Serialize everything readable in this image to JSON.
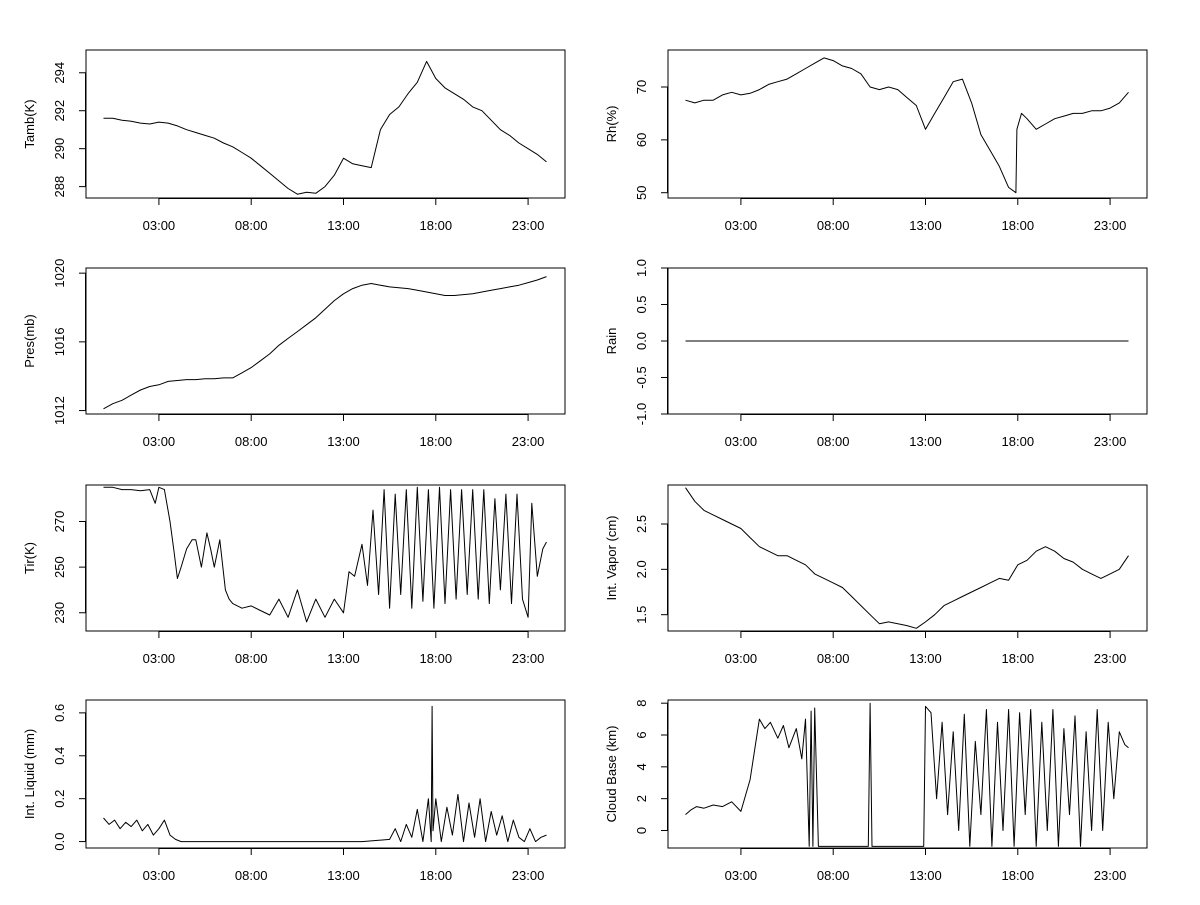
{
  "chart_data": [
    {
      "id": "tamb",
      "type": "line",
      "ylabel": "Tamb(K)",
      "x_tick_labels": [
        "03:00",
        "08:00",
        "13:00",
        "18:00",
        "23:00"
      ],
      "x_tick_hours": [
        3,
        8,
        13,
        18,
        23
      ],
      "xlim": [
        -0.95,
        25.0
      ],
      "ylim": [
        287.4,
        295.2
      ],
      "y_ticks": [
        288,
        290,
        292,
        294
      ],
      "y_tick_labels": [
        "288",
        "290",
        "292",
        "294"
      ],
      "series": [
        {
          "name": "Tamb(K)",
          "x": [
            0.0,
            0.5,
            1.0,
            1.5,
            2.0,
            2.5,
            3.0,
            3.5,
            4.0,
            4.5,
            5.0,
            5.5,
            6.0,
            6.5,
            7.0,
            7.5,
            8.0,
            8.5,
            9.0,
            9.5,
            10.0,
            10.5,
            11.0,
            11.5,
            12.0,
            12.5,
            13.0,
            13.5,
            14.0,
            14.5,
            15.0,
            15.5,
            16.0,
            16.5,
            17.0,
            17.5,
            18.0,
            18.5,
            19.0,
            19.5,
            20.0,
            20.5,
            21.0,
            21.5,
            22.0,
            22.5,
            23.0,
            23.5,
            24.0
          ],
          "values": [
            291.6,
            291.6,
            291.5,
            291.45,
            291.35,
            291.3,
            291.4,
            291.35,
            291.2,
            291.0,
            290.85,
            290.7,
            290.55,
            290.3,
            290.1,
            289.8,
            289.5,
            289.1,
            288.7,
            288.3,
            287.9,
            287.6,
            287.7,
            287.65,
            288.0,
            288.6,
            289.5,
            289.2,
            289.1,
            289.0,
            291.0,
            291.8,
            292.2,
            292.9,
            293.5,
            294.6,
            293.7,
            293.2,
            292.9,
            292.6,
            292.2,
            292.0,
            291.5,
            291.0,
            290.7,
            290.3,
            290.0,
            289.7,
            289.3
          ]
        }
      ]
    },
    {
      "id": "rh",
      "type": "line",
      "ylabel": "Rh(%)",
      "x_tick_labels": [
        "03:00",
        "08:00",
        "13:00",
        "18:00",
        "23:00"
      ],
      "x_tick_hours": [
        3,
        8,
        13,
        18,
        23
      ],
      "xlim": [
        -0.95,
        25.0
      ],
      "ylim": [
        49,
        77
      ],
      "y_ticks": [
        50,
        60,
        70
      ],
      "y_tick_labels": [
        "50",
        "60",
        "70"
      ],
      "series": [
        {
          "name": "Rh(%)",
          "x": [
            0.0,
            0.5,
            1.0,
            1.5,
            2.0,
            2.5,
            3.0,
            3.5,
            4.0,
            4.5,
            5.0,
            5.5,
            6.0,
            6.5,
            7.0,
            7.5,
            8.0,
            8.5,
            9.0,
            9.5,
            10.0,
            10.5,
            11.0,
            11.5,
            12.0,
            12.5,
            13.0,
            13.5,
            14.0,
            14.5,
            15.0,
            15.5,
            16.0,
            16.5,
            17.0,
            17.5,
            17.9,
            17.95,
            18.2,
            18.5,
            19.0,
            19.5,
            20.0,
            20.5,
            21.0,
            21.5,
            22.0,
            22.5,
            23.0,
            23.5,
            24.0
          ],
          "values": [
            67.5,
            67,
            67.5,
            67.5,
            68.5,
            69,
            68.5,
            68.8,
            69.5,
            70.5,
            71,
            71.5,
            72.5,
            73.5,
            74.5,
            75.5,
            75,
            74,
            73.5,
            72.5,
            70,
            69.5,
            70,
            69.5,
            68,
            66.5,
            62,
            65,
            68,
            71,
            71.5,
            67,
            61,
            58,
            55,
            51,
            50,
            62,
            65,
            64,
            62,
            63,
            64,
            64.5,
            65,
            65,
            65.5,
            65.5,
            66,
            67,
            69
          ]
        }
      ]
    },
    {
      "id": "pres",
      "type": "line",
      "ylabel": "Pres(mb)",
      "x_tick_labels": [
        "03:00",
        "08:00",
        "13:00",
        "18:00",
        "23:00"
      ],
      "x_tick_hours": [
        3,
        8,
        13,
        18,
        23
      ],
      "xlim": [
        -0.95,
        25.0
      ],
      "ylim": [
        1011.8,
        1020.3
      ],
      "y_ticks": [
        1012,
        1016,
        1020
      ],
      "y_tick_labels": [
        "1012",
        "1016",
        "1020"
      ],
      "series": [
        {
          "name": "Pres(mb)",
          "x": [
            0.0,
            0.5,
            1.0,
            1.5,
            2.0,
            2.5,
            3.0,
            3.5,
            4.0,
            4.5,
            5.0,
            5.5,
            6.0,
            6.5,
            7.0,
            7.5,
            8.0,
            8.5,
            9.0,
            9.5,
            10.0,
            10.5,
            11.0,
            11.5,
            12.0,
            12.5,
            13.0,
            13.5,
            14.0,
            14.5,
            15.0,
            15.5,
            16.0,
            16.5,
            17.0,
            17.5,
            18.0,
            18.5,
            19.0,
            19.5,
            20.0,
            20.5,
            21.0,
            21.5,
            22.0,
            22.5,
            23.0,
            23.5,
            24.0
          ],
          "values": [
            1012.1,
            1012.4,
            1012.6,
            1012.9,
            1013.2,
            1013.4,
            1013.5,
            1013.7,
            1013.75,
            1013.8,
            1013.8,
            1013.85,
            1013.85,
            1013.9,
            1013.9,
            1014.2,
            1014.5,
            1014.9,
            1015.3,
            1015.8,
            1016.2,
            1016.6,
            1017.0,
            1017.4,
            1017.9,
            1018.4,
            1018.8,
            1019.1,
            1019.3,
            1019.4,
            1019.3,
            1019.2,
            1019.15,
            1019.1,
            1019.0,
            1018.9,
            1018.8,
            1018.7,
            1018.7,
            1018.75,
            1018.8,
            1018.9,
            1019.0,
            1019.1,
            1019.2,
            1019.3,
            1019.45,
            1019.6,
            1019.8
          ]
        }
      ]
    },
    {
      "id": "rain",
      "type": "line",
      "ylabel": "Rain",
      "x_tick_labels": [
        "03:00",
        "08:00",
        "13:00",
        "18:00",
        "23:00"
      ],
      "x_tick_hours": [
        3,
        8,
        13,
        18,
        23
      ],
      "xlim": [
        -0.95,
        25.0
      ],
      "ylim": [
        -1.0,
        1.0
      ],
      "y_ticks": [
        -1.0,
        -0.5,
        0.0,
        0.5,
        1.0
      ],
      "y_tick_labels": [
        "-1.0",
        "-0.5",
        "0.0",
        "0.5",
        "1.0"
      ],
      "series": [
        {
          "name": "Rain",
          "x": [
            0.0,
            24.0
          ],
          "values": [
            0.0,
            0.0
          ]
        }
      ]
    },
    {
      "id": "tir",
      "type": "line",
      "ylabel": "Tir(K)",
      "x_tick_labels": [
        "03:00",
        "08:00",
        "13:00",
        "18:00",
        "23:00"
      ],
      "x_tick_hours": [
        3,
        8,
        13,
        18,
        23
      ],
      "xlim": [
        -0.95,
        25.0
      ],
      "ylim": [
        222,
        286
      ],
      "y_ticks": [
        230,
        250,
        270
      ],
      "y_tick_labels": [
        "230",
        "250",
        "270"
      ],
      "series": [
        {
          "name": "Tir(K)",
          "x": [
            0.0,
            0.5,
            1.0,
            1.5,
            2.0,
            2.5,
            2.8,
            3.0,
            3.3,
            3.6,
            3.8,
            4.0,
            4.2,
            4.5,
            4.8,
            5.0,
            5.3,
            5.6,
            5.8,
            6.0,
            6.3,
            6.6,
            6.8,
            7.0,
            7.5,
            8.0,
            8.5,
            9.0,
            9.5,
            10.0,
            10.5,
            11.0,
            11.5,
            12.0,
            12.5,
            13.0,
            13.3,
            13.6,
            14.0,
            14.3,
            14.6,
            14.9,
            15.2,
            15.5,
            15.8,
            16.1,
            16.4,
            16.7,
            17.0,
            17.3,
            17.6,
            17.9,
            18.2,
            18.5,
            18.8,
            19.1,
            19.4,
            19.7,
            20.0,
            20.3,
            20.6,
            20.9,
            21.2,
            21.5,
            21.8,
            22.1,
            22.4,
            22.7,
            23.0,
            23.2,
            23.5,
            23.8,
            24.0
          ],
          "values": [
            285,
            285,
            284,
            284,
            283.5,
            284,
            278,
            285,
            284,
            270,
            258,
            245,
            250,
            258,
            262,
            262,
            250,
            265,
            258,
            250,
            262,
            240,
            236,
            234,
            232,
            233,
            231,
            229,
            236,
            228,
            240,
            226,
            236,
            228,
            236,
            230,
            248,
            246,
            260,
            242,
            275,
            238,
            284,
            232,
            282,
            238,
            284,
            232,
            285,
            235,
            284,
            232,
            285,
            234,
            284,
            236,
            284,
            238,
            284,
            236,
            284,
            234,
            280,
            240,
            282,
            234,
            282,
            236,
            228,
            278,
            246,
            258,
            261
          ]
        }
      ]
    },
    {
      "id": "vapor",
      "type": "line",
      "ylabel": "Int. Vapor (cm)",
      "x_tick_labels": [
        "03:00",
        "08:00",
        "13:00",
        "18:00",
        "23:00"
      ],
      "x_tick_hours": [
        3,
        8,
        13,
        18,
        23
      ],
      "xlim": [
        -0.95,
        25.0
      ],
      "ylim": [
        1.32,
        2.93
      ],
      "y_ticks": [
        1.5,
        2.0,
        2.5
      ],
      "y_tick_labels": [
        "1.5",
        "2.0",
        "2.5"
      ],
      "series": [
        {
          "name": "Int. Vapor (cm)",
          "x": [
            0.0,
            0.5,
            1.0,
            1.5,
            2.0,
            2.5,
            3.0,
            3.5,
            4.0,
            4.5,
            5.0,
            5.5,
            6.0,
            6.5,
            7.0,
            7.5,
            8.0,
            8.5,
            9.0,
            9.5,
            10.0,
            10.5,
            11.0,
            11.5,
            12.0,
            12.5,
            13.0,
            13.5,
            14.0,
            14.5,
            15.0,
            15.5,
            16.0,
            16.5,
            17.0,
            17.5,
            18.0,
            18.5,
            19.0,
            19.5,
            20.0,
            20.5,
            21.0,
            21.5,
            22.0,
            22.5,
            23.0,
            23.5,
            24.0
          ],
          "values": [
            2.9,
            2.75,
            2.65,
            2.6,
            2.55,
            2.5,
            2.45,
            2.35,
            2.25,
            2.2,
            2.15,
            2.15,
            2.1,
            2.05,
            1.95,
            1.9,
            1.85,
            1.8,
            1.7,
            1.6,
            1.5,
            1.4,
            1.42,
            1.4,
            1.38,
            1.35,
            1.42,
            1.5,
            1.6,
            1.65,
            1.7,
            1.75,
            1.8,
            1.85,
            1.9,
            1.88,
            2.05,
            2.1,
            2.2,
            2.25,
            2.2,
            2.12,
            2.08,
            2.0,
            1.95,
            1.9,
            1.95,
            2.0,
            2.15
          ]
        }
      ]
    },
    {
      "id": "liquid",
      "type": "line",
      "ylabel": "Int. Liquid (mm)",
      "x_tick_labels": [
        "03:00",
        "08:00",
        "13:00",
        "18:00",
        "23:00"
      ],
      "x_tick_hours": [
        3,
        8,
        13,
        18,
        23
      ],
      "xlim": [
        -0.95,
        25.0
      ],
      "ylim": [
        -0.03,
        0.66
      ],
      "y_ticks": [
        0.0,
        0.2,
        0.4,
        0.6
      ],
      "y_tick_labels": [
        "0.0",
        "0.2",
        "0.4",
        "0.6"
      ],
      "series": [
        {
          "name": "Int. Liquid (mm)",
          "x": [
            0.0,
            0.3,
            0.6,
            0.9,
            1.2,
            1.5,
            1.8,
            2.1,
            2.4,
            2.7,
            3.0,
            3.3,
            3.6,
            3.9,
            4.2,
            5.0,
            6.0,
            8.0,
            10.0,
            12.0,
            14.0,
            15.5,
            15.8,
            16.1,
            16.4,
            16.7,
            17.0,
            17.3,
            17.6,
            17.75,
            17.8,
            17.85,
            18.0,
            18.3,
            18.6,
            18.9,
            19.2,
            19.5,
            19.8,
            20.1,
            20.4,
            20.7,
            21.0,
            21.3,
            21.6,
            21.9,
            22.2,
            22.5,
            22.8,
            23.1,
            23.4,
            23.7,
            24.0
          ],
          "values": [
            0.11,
            0.08,
            0.1,
            0.06,
            0.09,
            0.07,
            0.1,
            0.05,
            0.08,
            0.03,
            0.06,
            0.1,
            0.03,
            0.01,
            0.0,
            0.0,
            0.0,
            0.0,
            0.0,
            0.0,
            0.0,
            0.01,
            0.06,
            0.0,
            0.08,
            0.02,
            0.15,
            0.0,
            0.2,
            0.0,
            0.63,
            0.05,
            0.2,
            0.0,
            0.16,
            0.03,
            0.22,
            0.0,
            0.18,
            0.02,
            0.2,
            0.0,
            0.14,
            0.03,
            0.12,
            0.0,
            0.1,
            0.02,
            0.0,
            0.06,
            0.0,
            0.02,
            0.03
          ]
        }
      ]
    },
    {
      "id": "cloudbase",
      "type": "line",
      "ylabel": "Cloud Base (km)",
      "x_tick_labels": [
        "03:00",
        "08:00",
        "13:00",
        "18:00",
        "23:00"
      ],
      "x_tick_hours": [
        3,
        8,
        13,
        18,
        23
      ],
      "xlim": [
        -0.95,
        25.0
      ],
      "ylim": [
        -1.1,
        8.2
      ],
      "y_ticks": [
        0,
        2,
        4,
        6,
        8
      ],
      "y_tick_labels": [
        "0",
        "2",
        "4",
        "6",
        "8"
      ],
      "series": [
        {
          "name": "Cloud Base (km)",
          "x": [
            0.0,
            0.3,
            0.6,
            1.0,
            1.5,
            2.0,
            2.5,
            3.0,
            3.5,
            3.8,
            4.0,
            4.3,
            4.6,
            5.0,
            5.3,
            5.6,
            6.0,
            6.3,
            6.5,
            6.7,
            6.8,
            6.9,
            7.0,
            7.2,
            7.3,
            8.0,
            9.0,
            9.9,
            10.0,
            10.1,
            11.0,
            12.0,
            12.9,
            13.0,
            13.3,
            13.6,
            13.9,
            14.2,
            14.5,
            14.8,
            15.1,
            15.4,
            15.7,
            16.0,
            16.3,
            16.6,
            16.9,
            17.2,
            17.5,
            17.8,
            18.1,
            18.4,
            18.7,
            19.0,
            19.3,
            19.6,
            19.9,
            20.2,
            20.5,
            20.8,
            21.1,
            21.4,
            21.7,
            22.0,
            22.3,
            22.6,
            22.9,
            23.2,
            23.5,
            23.8,
            24.0
          ],
          "values": [
            1,
            1.3,
            1.5,
            1.4,
            1.6,
            1.5,
            1.8,
            1.2,
            3.2,
            5.5,
            7,
            6.4,
            6.8,
            5.8,
            6.6,
            5.2,
            6.4,
            4.5,
            7,
            -1,
            7.5,
            -1,
            7.7,
            -1,
            -1,
            -1,
            -1,
            -1,
            8,
            -1,
            -1,
            -1,
            -1,
            7.8,
            7.4,
            2,
            6.8,
            1,
            6.2,
            0,
            7.3,
            -1,
            5.6,
            1,
            7.6,
            -1,
            6.8,
            0,
            7.6,
            -1,
            7.4,
            1,
            7.6,
            -1,
            6.8,
            0,
            7.6,
            -1,
            6.4,
            1,
            7.2,
            -1,
            6.2,
            0,
            7.6,
            0,
            6.8,
            2,
            6.2,
            5.4,
            5.2
          ]
        }
      ]
    }
  ]
}
